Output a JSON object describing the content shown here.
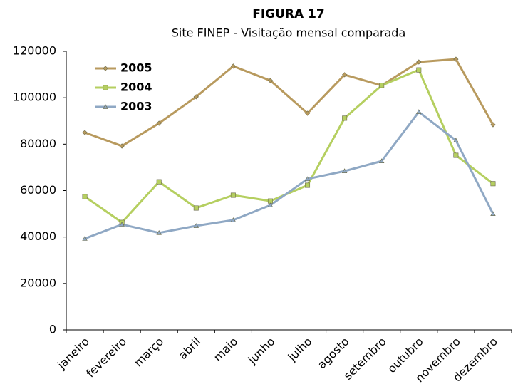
{
  "chart_data": {
    "type": "line",
    "title": "FIGURA 17",
    "subtitle": "Site FINEP - Visitação mensal comparada",
    "categories": [
      "janeiro",
      "fevereiro",
      "março",
      "abril",
      "maio",
      "junho",
      "julho",
      "agosto",
      "setembro",
      "outubro",
      "novembro",
      "dezembro"
    ],
    "series": [
      {
        "name": "2005",
        "color": "#b89a5e",
        "marker": "diamond",
        "values": [
          85000,
          79200,
          89000,
          100400,
          113600,
          107400,
          93300,
          109900,
          105300,
          115400,
          116600,
          88400
        ]
      },
      {
        "name": "2004",
        "color": "#b5cf60",
        "marker": "square",
        "values": [
          57400,
          46300,
          63800,
          52500,
          58000,
          55500,
          62300,
          91200,
          105300,
          112000,
          75200,
          63000
        ]
      },
      {
        "name": "2003",
        "color": "#8fa8c4",
        "marker": "triangle",
        "values": [
          39300,
          45400,
          41800,
          44800,
          47300,
          53700,
          65000,
          68400,
          72700,
          93900,
          81600,
          50000
        ]
      }
    ],
    "ylim": [
      0,
      120000
    ],
    "yticks": [
      0,
      20000,
      40000,
      60000,
      80000,
      100000,
      120000
    ],
    "grid": false,
    "legend": "upper left"
  }
}
